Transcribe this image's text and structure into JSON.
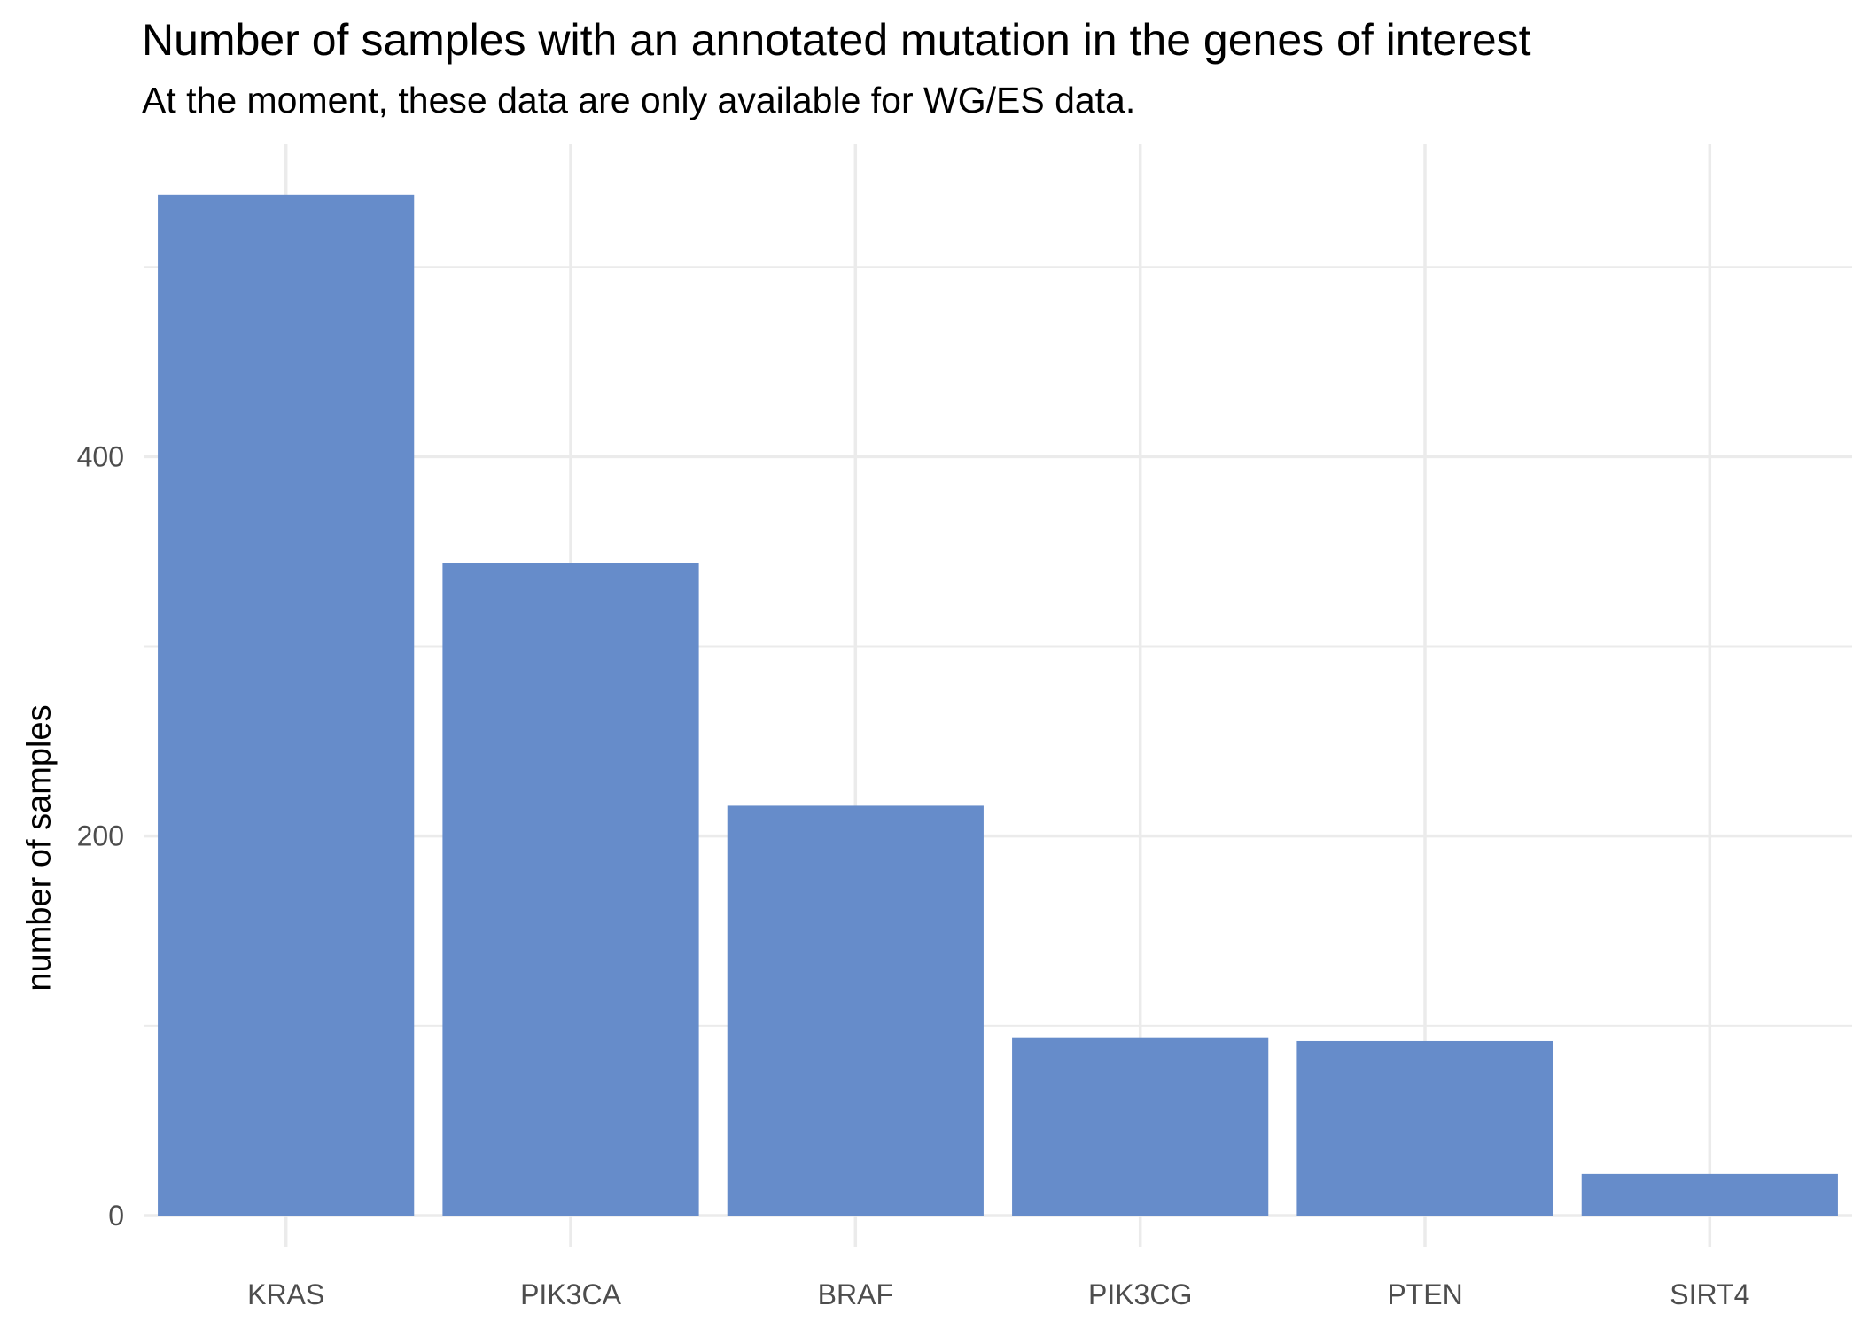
{
  "chart_data": {
    "type": "bar",
    "title": "Number of samples with an annotated mutation in the genes of interest",
    "subtitle": "At the moment, these data are only available for WG/ES data.",
    "xlabel": "",
    "ylabel": "number of samples",
    "categories": [
      "KRAS",
      "PIK3CA",
      "BRAF",
      "PIK3CG",
      "PTEN",
      "SIRT4"
    ],
    "values": [
      538,
      344,
      216,
      94,
      92,
      22
    ],
    "ylim": [
      0,
      565
    ],
    "yticks": [
      0,
      200,
      400
    ],
    "grid": true,
    "legend": "none",
    "bar_color": "#668cca",
    "grid_color": "#ebebeb",
    "tick_label_color": "#4d4d4d"
  }
}
